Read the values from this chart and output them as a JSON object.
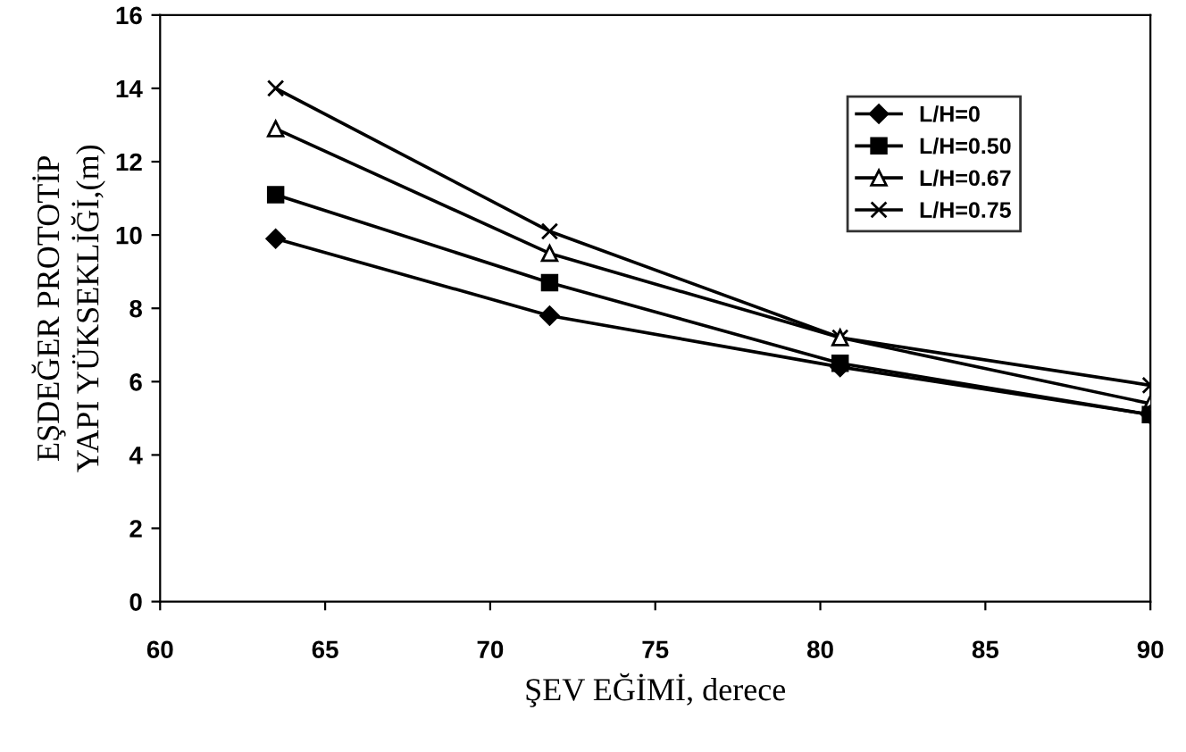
{
  "chart_data": {
    "type": "line",
    "xlabel": "ŞEV EĞİMİ, derece",
    "ylabel": "EŞDEĞER PROTOTİP\nYAPI YÜKSEKLİĞİ,(m)",
    "x": [
      63.5,
      71.8,
      80.6,
      90
    ],
    "series": [
      {
        "name": "L/H=0",
        "color": "#000000",
        "marker": "diamond",
        "values": [
          9.9,
          7.8,
          6.4,
          5.1
        ]
      },
      {
        "name": "L/H=0.50",
        "color": "#000000",
        "marker": "square",
        "values": [
          11.1,
          8.7,
          6.5,
          5.1
        ]
      },
      {
        "name": "L/H=0.67",
        "color": "#000000",
        "marker": "triangle",
        "values": [
          12.9,
          9.5,
          7.2,
          5.4
        ]
      },
      {
        "name": "L/H=0.75",
        "color": "#000000",
        "marker": "cross",
        "values": [
          14.0,
          10.1,
          7.2,
          5.9
        ]
      }
    ],
    "xlim": [
      60,
      90
    ],
    "xticks": [
      60,
      65,
      70,
      75,
      80,
      85,
      90
    ],
    "ylim": [
      0,
      16
    ],
    "yticks": [
      0,
      2,
      4,
      6,
      8,
      10,
      12,
      14,
      16
    ],
    "grid": false,
    "legend": "top right",
    "line_style": "solid"
  }
}
